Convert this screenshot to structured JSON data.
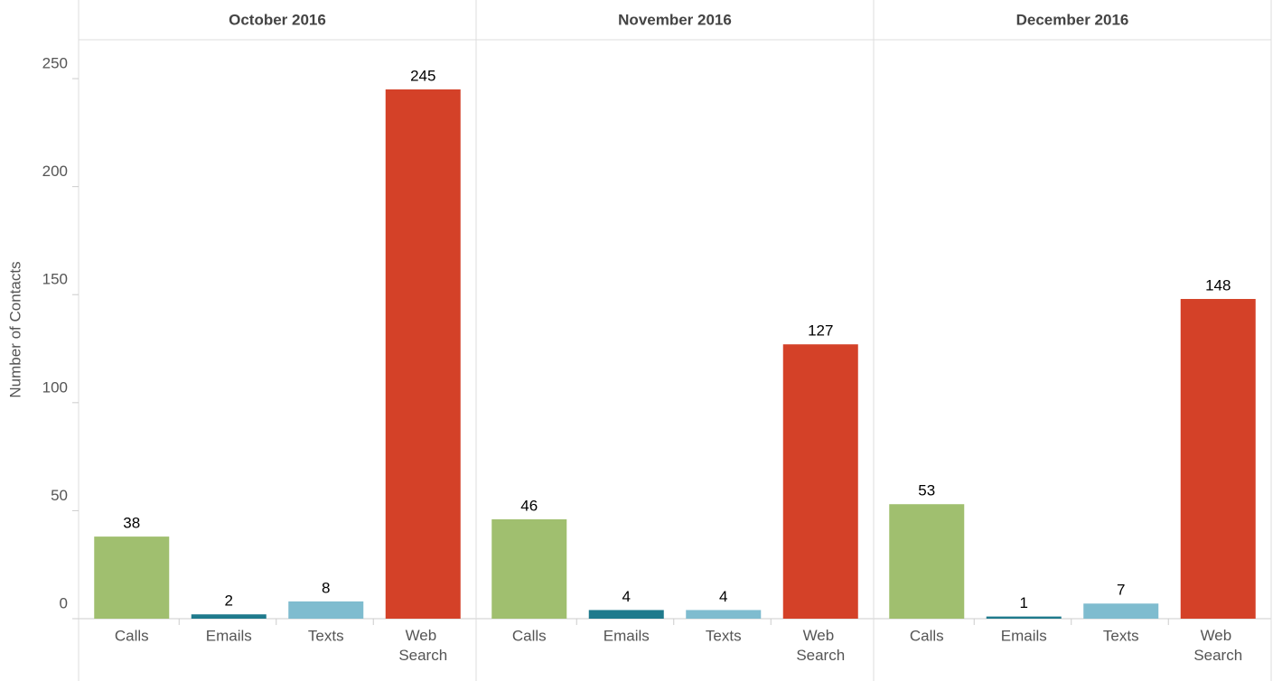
{
  "chart_data": {
    "type": "bar",
    "y_label": "Number of Contacts",
    "ylim": [
      0,
      268
    ],
    "yticks": [
      0,
      50,
      100,
      150,
      200,
      250
    ],
    "categories": [
      "Calls",
      "Emails",
      "Texts",
      "Web Search"
    ],
    "colors": [
      "#a0bf6f",
      "#1f7a8c",
      "#7fbccf",
      "#d44128"
    ],
    "facets": [
      {
        "title": "October 2016",
        "values": [
          38,
          2,
          8,
          245
        ]
      },
      {
        "title": "November 2016",
        "values": [
          46,
          4,
          4,
          127
        ]
      },
      {
        "title": "December 2016",
        "values": [
          53,
          1,
          7,
          148
        ]
      }
    ]
  }
}
